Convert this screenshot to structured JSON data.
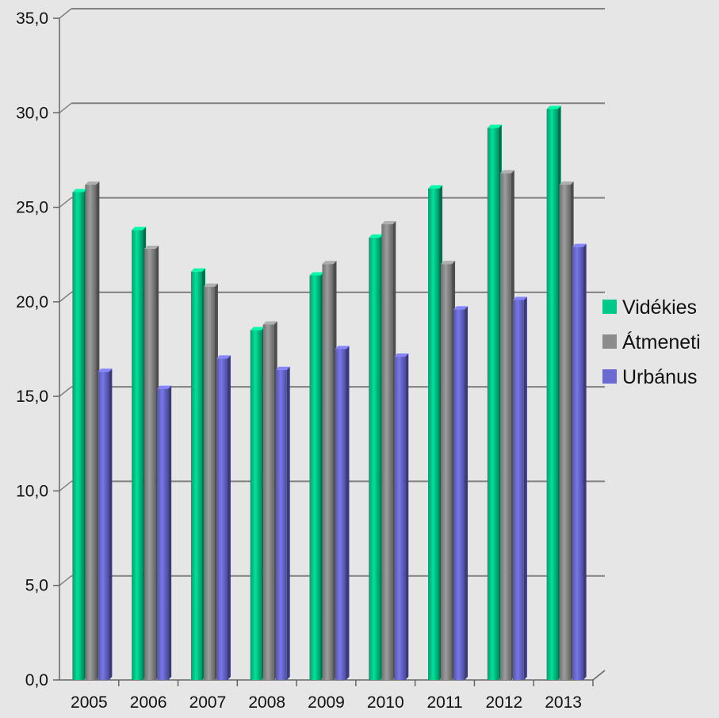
{
  "chart_data": {
    "type": "bar",
    "title": "",
    "xlabel": "",
    "ylabel": "",
    "categories": [
      "2005",
      "2006",
      "2007",
      "2008",
      "2009",
      "2010",
      "2011",
      "2012",
      "2013"
    ],
    "series": [
      {
        "name": "Vidékies",
        "color": "#00c98a",
        "values": [
          25.8,
          23.8,
          21.6,
          18.5,
          21.4,
          23.4,
          26.0,
          29.2,
          30.2
        ]
      },
      {
        "name": "Átmeneti",
        "color": "#8c8c8c",
        "values": [
          26.2,
          22.8,
          20.8,
          18.8,
          22.0,
          24.1,
          22.0,
          26.8,
          26.2
        ]
      },
      {
        "name": "Urbánus",
        "color": "#6a6ad2",
        "values": [
          16.3,
          15.4,
          17.0,
          16.4,
          17.5,
          17.1,
          19.6,
          20.1,
          22.9
        ]
      }
    ],
    "ylim": [
      0,
      35
    ],
    "y_ticks": [
      "0,0",
      "5,0",
      "10,0",
      "15,0",
      "20,0",
      "25,0",
      "30,0",
      "35,0"
    ],
    "grid": true,
    "legend_position": "right"
  }
}
